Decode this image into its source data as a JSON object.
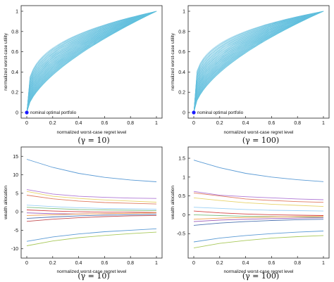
{
  "chart_data": [
    {
      "id": "tl",
      "type": "line",
      "xlabel": "normalized worst-case regret level",
      "ylabel": "normalized worst-case utility",
      "xlim": [
        0,
        1
      ],
      "ylim": [
        0,
        1
      ],
      "xticks": [
        "0",
        "0.2",
        "0.4",
        "0.6",
        "0.8",
        "1"
      ],
      "yticks": [
        "0",
        "0.2",
        "0.4",
        "0.6",
        "0.8",
        "1"
      ],
      "caption": "(γ = 10)",
      "curves": {
        "count": 45,
        "exponent_min": 0.28,
        "exponent_max": 0.62,
        "colors": [
          "#7fd2e6",
          "#5aa6dc",
          "#4fc7d8"
        ]
      },
      "marker": {
        "x": 0,
        "y": 0,
        "label": "nominal optimal portfolio",
        "color": "#1a1aff"
      }
    },
    {
      "id": "tr",
      "type": "line",
      "xlabel": "normalized worst-case regret level",
      "ylabel": "normalized worst-case utility",
      "xlim": [
        0,
        1
      ],
      "ylim": [
        0,
        1
      ],
      "xticks": [
        "0",
        "0.2",
        "0.4",
        "0.6",
        "0.8",
        "1"
      ],
      "yticks": [
        "0",
        "0.2",
        "0.4",
        "0.6",
        "0.8",
        "1"
      ],
      "caption": "(γ = 100)",
      "curves": {
        "count": 45,
        "exponent_min": 0.24,
        "exponent_max": 0.58,
        "colors": [
          "#7fd2e6",
          "#5aa6dc",
          "#4fc7d8"
        ]
      },
      "marker": {
        "x": 0,
        "y": 0,
        "label": "nominal optimal portfolio",
        "color": "#1a1aff"
      }
    },
    {
      "id": "bl",
      "type": "line",
      "xlabel": "normalized worst-case regret level",
      "ylabel": "wealth allocation",
      "xlim": [
        0,
        1
      ],
      "ylim": [
        -11,
        16
      ],
      "xticks": [
        "0",
        "0.2",
        "0.4",
        "0.6",
        "0.8",
        "1"
      ],
      "ytickvals": [
        -10,
        -5,
        0,
        5,
        10,
        15
      ],
      "yticks": [
        "-10",
        "-5",
        "0",
        "5",
        "10",
        "15"
      ],
      "caption": "(γ = 10)",
      "series": [
        {
          "color": "#5b9bd5",
          "y": [
            14.2,
            12.0,
            10.4,
            9.3,
            8.6,
            8.1
          ]
        },
        {
          "color": "#b07ad6",
          "y": [
            6.0,
            4.8,
            4.2,
            3.9,
            3.7,
            3.6
          ]
        },
        {
          "color": "#e8d36a",
          "y": [
            5.5,
            4.2,
            3.6,
            3.2,
            2.9,
            2.6
          ]
        },
        {
          "color": "#e07a5f",
          "y": [
            4.5,
            3.5,
            2.9,
            2.5,
            2.3,
            2.1
          ]
        },
        {
          "color": "#9ad0f5",
          "y": [
            1.8,
            1.4,
            1.1,
            0.9,
            0.8,
            0.7
          ]
        },
        {
          "color": "#7fbf7f",
          "y": [
            1.2,
            0.9,
            0.6,
            0.5,
            0.4,
            0.3
          ]
        },
        {
          "color": "#d64545",
          "y": [
            0.5,
            0.2,
            0.0,
            -0.1,
            -0.1,
            -0.2
          ]
        },
        {
          "color": "#9b59b6",
          "y": [
            -0.3,
            -0.5,
            -0.6,
            -0.5,
            -0.4,
            -0.3
          ]
        },
        {
          "color": "#f0a04b",
          "y": [
            -1.0,
            -0.8,
            -0.6,
            -0.5,
            -0.4,
            -0.3
          ]
        },
        {
          "color": "#4c72b0",
          "y": [
            -1.8,
            -1.4,
            -1.1,
            -0.9,
            -0.8,
            -0.7
          ]
        },
        {
          "color": "#c44e52",
          "y": [
            -2.6,
            -2.0,
            -1.6,
            -1.3,
            -1.1,
            -1.0
          ]
        },
        {
          "color": "#5b9bd5",
          "y": [
            -8.0,
            -6.8,
            -6.0,
            -5.4,
            -5.0,
            -4.6
          ]
        },
        {
          "color": "#a9c95b",
          "y": [
            -9.2,
            -7.9,
            -7.0,
            -6.4,
            -5.9,
            -5.5
          ]
        }
      ]
    },
    {
      "id": "br",
      "type": "line",
      "xlabel": "normalized worst-case regret level",
      "ylabel": "wealth allocation",
      "xlim": [
        0,
        1
      ],
      "ylim": [
        -1.0,
        1.65
      ],
      "xticks": [
        "0",
        "0.2",
        "0.4",
        "0.6",
        "0.8",
        "1"
      ],
      "ytickvals": [
        -0.5,
        0,
        0.5,
        1,
        1.5
      ],
      "yticks": [
        "-0.5",
        "0",
        "0.5",
        "1",
        "1.5"
      ],
      "caption": "(γ = 100)",
      "series": [
        {
          "color": "#5b9bd5",
          "y": [
            1.45,
            1.25,
            1.1,
            1.0,
            0.93,
            0.88
          ]
        },
        {
          "color": "#b07ad6",
          "y": [
            0.62,
            0.52,
            0.48,
            0.45,
            0.42,
            0.4
          ]
        },
        {
          "color": "#e07a5f",
          "y": [
            0.58,
            0.5,
            0.42,
            0.38,
            0.35,
            0.33
          ]
        },
        {
          "color": "#e8d36a",
          "y": [
            0.45,
            0.38,
            0.32,
            0.28,
            0.25,
            0.22
          ]
        },
        {
          "color": "#9ad0f5",
          "y": [
            0.2,
            0.17,
            0.14,
            0.12,
            0.11,
            0.1
          ]
        },
        {
          "color": "#d64545",
          "y": [
            0.1,
            0.05,
            0.02,
            0.0,
            -0.01,
            -0.02
          ]
        },
        {
          "color": "#7fbf7f",
          "y": [
            0.0,
            -0.02,
            -0.04,
            -0.05,
            -0.06,
            -0.07
          ]
        },
        {
          "color": "#f0a04b",
          "y": [
            -0.12,
            -0.09,
            -0.07,
            -0.06,
            -0.05,
            -0.04
          ]
        },
        {
          "color": "#9b59b6",
          "y": [
            -0.18,
            -0.14,
            -0.12,
            -0.1,
            -0.09,
            -0.08
          ]
        },
        {
          "color": "#4c72b0",
          "y": [
            -0.28,
            -0.22,
            -0.18,
            -0.15,
            -0.13,
            -0.12
          ]
        },
        {
          "color": "#5b9bd5",
          "y": [
            -0.72,
            -0.62,
            -0.55,
            -0.5,
            -0.46,
            -0.43
          ]
        },
        {
          "color": "#a9c95b",
          "y": [
            -0.88,
            -0.76,
            -0.68,
            -0.62,
            -0.58,
            -0.55
          ]
        }
      ]
    }
  ]
}
